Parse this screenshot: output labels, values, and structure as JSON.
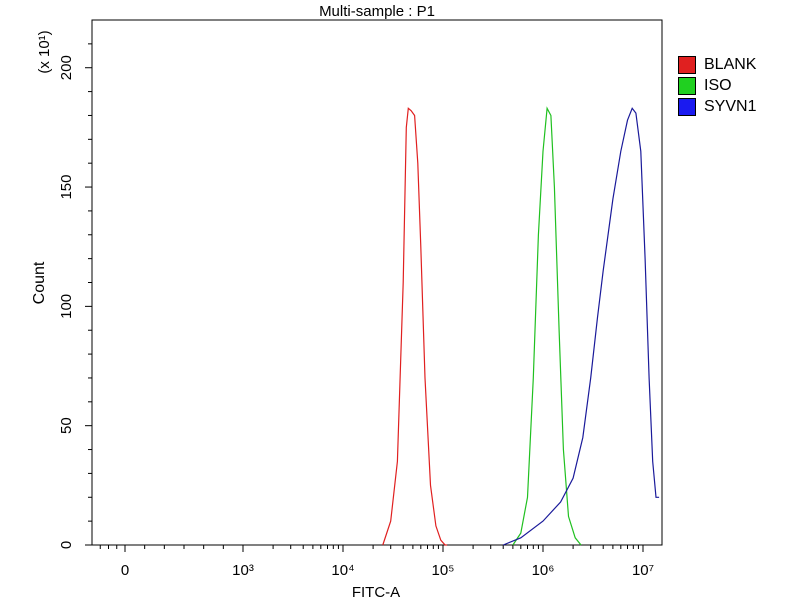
{
  "chart_data": {
    "type": "line",
    "title": "Multi-sample : P1",
    "xlabel": "FITC-A",
    "ylabel": "Count",
    "y_multiplier_label": "(x 10¹)",
    "xscale": "log",
    "ylim": [
      0,
      220
    ],
    "yticks": [
      0,
      50,
      100,
      150,
      200
    ],
    "xticks": [
      {
        "label": "0",
        "value": 0
      },
      {
        "label": "10³",
        "value": 1000
      },
      {
        "label": "10⁴",
        "value": 10000
      },
      {
        "label": "10⁵",
        "value": 100000
      },
      {
        "label": "10⁶",
        "value": 1000000
      },
      {
        "label": "10⁷",
        "value": 10000000
      }
    ],
    "legend_position": "right",
    "series": [
      {
        "name": "BLANK",
        "color": "#e02020",
        "x": [
          25000,
          30000,
          35000,
          40000,
          43000,
          45000,
          48000,
          52000,
          56000,
          60000,
          66000,
          75000,
          85000,
          95000,
          105000,
          110000
        ],
        "y": [
          0,
          10,
          35,
          110,
          175,
          183,
          182,
          180,
          160,
          125,
          70,
          25,
          8,
          2,
          0,
          0
        ]
      },
      {
        "name": "ISO",
        "color": "#20c020",
        "x": [
          500000,
          600000,
          700000,
          800000,
          900000,
          1000000,
          1100000,
          1200000,
          1300000,
          1450000,
          1600000,
          1800000,
          2100000,
          2400000
        ],
        "y": [
          0,
          5,
          20,
          70,
          130,
          165,
          183,
          180,
          150,
          90,
          40,
          12,
          3,
          0
        ]
      },
      {
        "name": "SYVN1",
        "color": "#1a1a9a",
        "x": [
          400000,
          600000,
          1000000,
          1500000,
          2000000,
          2500000,
          3000000,
          3500000,
          4000000,
          5000000,
          6000000,
          7000000,
          7800000,
          8500000,
          9500000,
          10500000,
          11500000,
          12500000,
          13500000,
          14500000
        ],
        "y": [
          0,
          3,
          10,
          18,
          28,
          45,
          70,
          95,
          115,
          145,
          165,
          178,
          183,
          181,
          165,
          120,
          70,
          35,
          20,
          20
        ]
      }
    ]
  }
}
